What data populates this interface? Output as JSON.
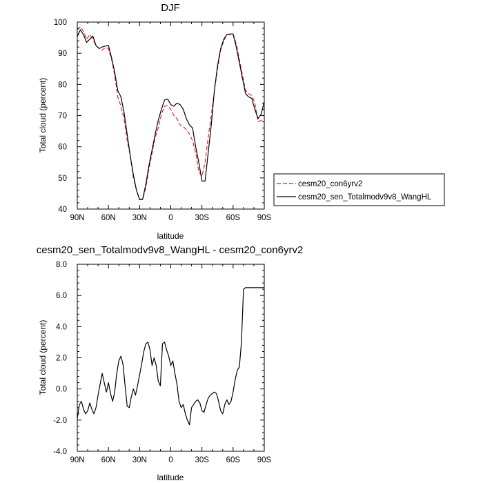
{
  "chart_data": [
    {
      "type": "line",
      "title": "DJF",
      "xlabel": "latitude",
      "ylabel": "Total cloud (percent)",
      "xlim": [
        90,
        -90
      ],
      "ylim": [
        40,
        100
      ],
      "x_ticks": [
        90,
        60,
        30,
        0,
        -30,
        -60,
        -90
      ],
      "x_tick_labels": [
        "90N",
        "60N",
        "30N",
        "0",
        "30S",
        "60S",
        "90S"
      ],
      "y_ticks": [
        40,
        50,
        60,
        70,
        80,
        90,
        100
      ],
      "y_tick_labels": [
        "40",
        "50",
        "60",
        "70",
        "80",
        "90",
        "100"
      ],
      "legend_position": "right, outside plot",
      "series": [
        {
          "name": "cesm20_con6yrv2",
          "color": "#e8141e",
          "dash": true,
          "x": [
            90,
            87,
            84,
            81,
            78,
            75,
            72,
            69,
            66,
            63,
            60,
            57,
            54,
            51,
            48,
            45,
            42,
            39,
            36,
            33,
            30,
            27,
            24,
            21,
            18,
            15,
            12,
            9,
            6,
            3,
            0,
            -3,
            -6,
            -9,
            -12,
            -15,
            -18,
            -21,
            -24,
            -27,
            -30,
            -33,
            -36,
            -39,
            -42,
            -45,
            -48,
            -51,
            -54,
            -57,
            -60,
            -63,
            -66,
            -69,
            -72,
            -75,
            -78,
            -81,
            -84,
            -87,
            -90
          ],
          "values": [
            97.5,
            98.5,
            97,
            94.5,
            96,
            94.5,
            92.5,
            91.5,
            91,
            91.8,
            91.5,
            88,
            83,
            76,
            73,
            69,
            62,
            57,
            50,
            46,
            43.2,
            43,
            47,
            53,
            58,
            63,
            66,
            70.5,
            73,
            73.2,
            72,
            70,
            69,
            67,
            66.5,
            65.5,
            64,
            62,
            58,
            52,
            50.5,
            55,
            63,
            70,
            78,
            85,
            91,
            94,
            96,
            96,
            96.2,
            93,
            88,
            83,
            78,
            77,
            76.5,
            74,
            68,
            68.5,
            68
          ]
        },
        {
          "name": "cesm20_sen_Totalmodv9v8_WangHL",
          "color": "#000000",
          "dash": false,
          "x": [
            90,
            87,
            84,
            81,
            78,
            75,
            72,
            69,
            66,
            63,
            60,
            57,
            54,
            51,
            48,
            45,
            42,
            39,
            36,
            33,
            30,
            27,
            24,
            21,
            18,
            15,
            12,
            9,
            6,
            3,
            0,
            -3,
            -6,
            -9,
            -12,
            -15,
            -18,
            -21,
            -24,
            -27,
            -30,
            -33,
            -36,
            -39,
            -42,
            -45,
            -48,
            -51,
            -54,
            -57,
            -60,
            -63,
            -66,
            -69,
            -72,
            -75,
            -78,
            -81,
            -84,
            -87,
            -90
          ],
          "values": [
            95.5,
            97.5,
            96,
            93.5,
            94.5,
            95.5,
            92.5,
            91.5,
            92,
            92.3,
            92.5,
            88.5,
            84,
            78,
            76,
            71,
            64,
            57,
            51,
            46,
            43,
            43.2,
            48,
            54,
            59,
            64,
            68.5,
            72,
            75,
            75.3,
            73.5,
            73,
            74,
            73.5,
            72,
            69,
            67,
            66,
            60,
            55,
            49,
            49,
            58,
            67,
            78,
            86,
            91.5,
            94.5,
            96,
            96.2,
            96.2,
            92,
            87,
            82,
            77,
            76,
            75.5,
            72,
            69,
            70.5,
            74.5
          ]
        }
      ]
    },
    {
      "type": "line",
      "title": "cesm20_sen_Totalmodv9v8_WangHL - cesm20_con6yrv2",
      "xlabel": "latitude",
      "ylabel": "Total cloud (percent)",
      "xlim": [
        90,
        -90
      ],
      "ylim": [
        -4,
        8
      ],
      "x_ticks": [
        90,
        60,
        30,
        0,
        -30,
        -60,
        -90
      ],
      "x_tick_labels": [
        "90N",
        "60N",
        "30N",
        "0",
        "30S",
        "60S",
        "90S"
      ],
      "y_ticks": [
        -4,
        -2,
        0,
        2,
        4,
        6,
        8
      ],
      "y_tick_labels": [
        "-4.0",
        "-2.0",
        "0.0",
        "2.0",
        "4.0",
        "6.0",
        "8.0"
      ],
      "series": [
        {
          "color": "#000000",
          "dash": false,
          "x": [
            90,
            88,
            86,
            84,
            82,
            80,
            78,
            76,
            74,
            72,
            70,
            68,
            66,
            64,
            62,
            60,
            58,
            56,
            54,
            52,
            50,
            48,
            46,
            44,
            42,
            40,
            38,
            36,
            34,
            32,
            30,
            28,
            26,
            24,
            22,
            20,
            18,
            16,
            14,
            12,
            10,
            8,
            6,
            4,
            2,
            0,
            -2,
            -4,
            -6,
            -8,
            -10,
            -12,
            -14,
            -16,
            -18,
            -20,
            -22,
            -24,
            -26,
            -28,
            -30,
            -32,
            -34,
            -36,
            -38,
            -40,
            -42,
            -44,
            -46,
            -48,
            -50,
            -52,
            -54,
            -56,
            -58,
            -60,
            -62,
            -64,
            -66,
            -68,
            -70,
            -72,
            -74,
            -76,
            -78,
            -80,
            -82,
            -84,
            -86,
            -88,
            -90
          ],
          "values": [
            -1.9,
            -1.0,
            -0.8,
            -1.3,
            -1.6,
            -1.4,
            -0.9,
            -1.3,
            -1.6,
            -1.2,
            -0.4,
            0.3,
            1.0,
            0.4,
            -0.2,
            0.4,
            -0.3,
            -0.8,
            -0.2,
            1.0,
            1.8,
            2.1,
            1.6,
            0.2,
            -1.1,
            -1.2,
            -0.5,
            0.0,
            -0.4,
            0.2,
            0.9,
            1.6,
            2.4,
            2.9,
            3.0,
            2.5,
            1.5,
            2.0,
            1.5,
            0.5,
            0.2,
            2.9,
            3.0,
            2.5,
            2.1,
            1.5,
            1.8,
            1.0,
            0.3,
            -0.8,
            -1.2,
            -1.0,
            -1.6,
            -2.0,
            -2.3,
            -1.2,
            -1.0,
            -0.8,
            -0.7,
            -0.9,
            -1.4,
            -1.5,
            -1.0,
            -0.6,
            -0.4,
            -0.3,
            -0.2,
            -0.3,
            -0.8,
            -1.4,
            -1.6,
            -1.0,
            -0.7,
            -1.0,
            -0.8,
            -0.2,
            0.6,
            1.2,
            1.4,
            3.0,
            6.4,
            6.5,
            6.5,
            6.5,
            6.5,
            6.5,
            6.5,
            6.5,
            6.5,
            6.5,
            6.5
          ]
        }
      ]
    }
  ]
}
